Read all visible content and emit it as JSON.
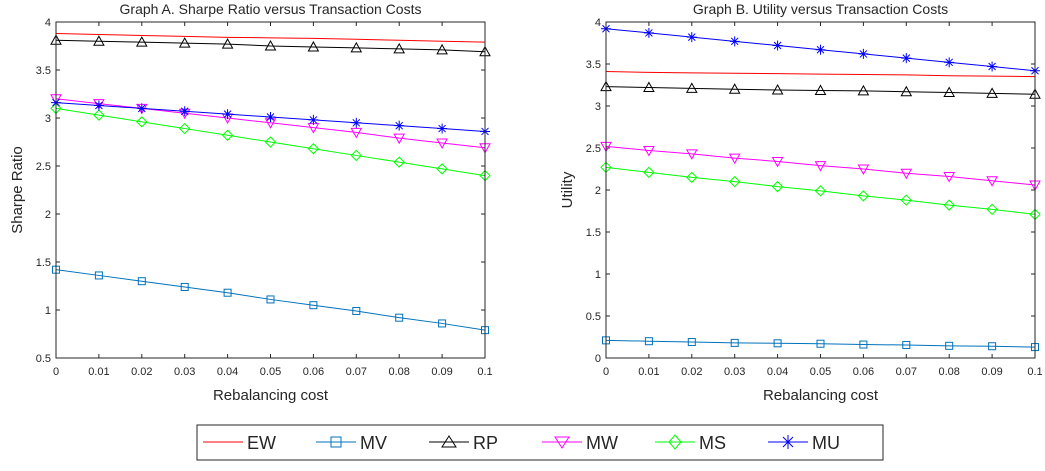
{
  "chart_data": [
    {
      "type": "line",
      "title": "Graph A. Sharpe Ratio versus Transaction Costs",
      "x_label": "Rebalancing cost",
      "y_label": "Sharpe Ratio",
      "x": [
        0,
        0.01,
        0.02,
        0.03,
        0.04,
        0.05,
        0.06,
        0.07,
        0.08,
        0.09,
        0.1
      ],
      "xlim": [
        0,
        0.1
      ],
      "xticks": [
        0,
        0.01,
        0.02,
        0.03,
        0.04,
        0.05,
        0.06,
        0.07,
        0.08,
        0.09,
        0.1
      ],
      "ylim": [
        0.5,
        4
      ],
      "yticks": [
        0.5,
        1,
        1.5,
        2,
        2.5,
        3,
        3.5,
        4
      ],
      "series": [
        {
          "name": "EW",
          "color": "#ff0000",
          "marker": "none",
          "values": [
            3.88,
            3.87,
            3.86,
            3.85,
            3.84,
            3.835,
            3.83,
            3.82,
            3.81,
            3.8,
            3.79
          ]
        },
        {
          "name": "MV",
          "color": "#0072bd",
          "marker": "square",
          "values": [
            1.42,
            1.36,
            1.3,
            1.24,
            1.18,
            1.11,
            1.05,
            0.99,
            0.92,
            0.86,
            0.79
          ]
        },
        {
          "name": "RP",
          "color": "#000000",
          "marker": "triangle-up",
          "values": [
            3.81,
            3.8,
            3.79,
            3.78,
            3.77,
            3.75,
            3.74,
            3.73,
            3.72,
            3.71,
            3.69
          ]
        },
        {
          "name": "MW",
          "color": "#ff00ff",
          "marker": "triangle-down",
          "values": [
            3.2,
            3.15,
            3.1,
            3.05,
            3.0,
            2.95,
            2.9,
            2.85,
            2.79,
            2.74,
            2.69
          ]
        },
        {
          "name": "MS",
          "color": "#00ff00",
          "marker": "diamond",
          "values": [
            3.1,
            3.03,
            2.96,
            2.89,
            2.82,
            2.75,
            2.68,
            2.61,
            2.54,
            2.47,
            2.4
          ]
        },
        {
          "name": "MU",
          "color": "#0000ff",
          "marker": "asterisk",
          "values": [
            3.16,
            3.13,
            3.1,
            3.07,
            3.04,
            3.01,
            2.98,
            2.95,
            2.92,
            2.89,
            2.86
          ]
        }
      ]
    },
    {
      "type": "line",
      "title": "Graph B. Utility versus Transaction Costs",
      "x_label": "Rebalancing cost",
      "y_label": "Utility",
      "x": [
        0,
        0.01,
        0.02,
        0.03,
        0.04,
        0.05,
        0.06,
        0.07,
        0.08,
        0.09,
        0.1
      ],
      "xlim": [
        0,
        0.1
      ],
      "xticks": [
        0,
        0.01,
        0.02,
        0.03,
        0.04,
        0.05,
        0.06,
        0.07,
        0.08,
        0.09,
        0.1
      ],
      "ylim": [
        0,
        4
      ],
      "yticks": [
        0,
        0.5,
        1,
        1.5,
        2,
        2.5,
        3,
        3.5,
        4
      ],
      "series": [
        {
          "color": "#ff0000",
          "marker": "none",
          "values": [
            3.41,
            3.4,
            3.395,
            3.39,
            3.385,
            3.38,
            3.375,
            3.37,
            3.36,
            3.355,
            3.35
          ]
        },
        {
          "color": "#0072bd",
          "marker": "square",
          "values": [
            0.21,
            0.2,
            0.19,
            0.18,
            0.175,
            0.17,
            0.16,
            0.155,
            0.145,
            0.14,
            0.13
          ]
        },
        {
          "color": "#000000",
          "marker": "triangle-up",
          "values": [
            3.23,
            3.22,
            3.21,
            3.2,
            3.19,
            3.185,
            3.18,
            3.17,
            3.16,
            3.15,
            3.14
          ]
        },
        {
          "color": "#ff00ff",
          "marker": "triangle-down",
          "values": [
            2.52,
            2.47,
            2.43,
            2.38,
            2.34,
            2.29,
            2.25,
            2.2,
            2.16,
            2.11,
            2.06
          ]
        },
        {
          "color": "#00ff00",
          "marker": "diamond",
          "values": [
            2.27,
            2.21,
            2.15,
            2.1,
            2.04,
            1.99,
            1.93,
            1.88,
            1.82,
            1.77,
            1.71
          ]
        },
        {
          "color": "#0000ff",
          "marker": "asterisk",
          "values": [
            3.92,
            3.87,
            3.82,
            3.77,
            3.72,
            3.67,
            3.62,
            3.57,
            3.52,
            3.47,
            3.42
          ]
        }
      ]
    }
  ]
}
